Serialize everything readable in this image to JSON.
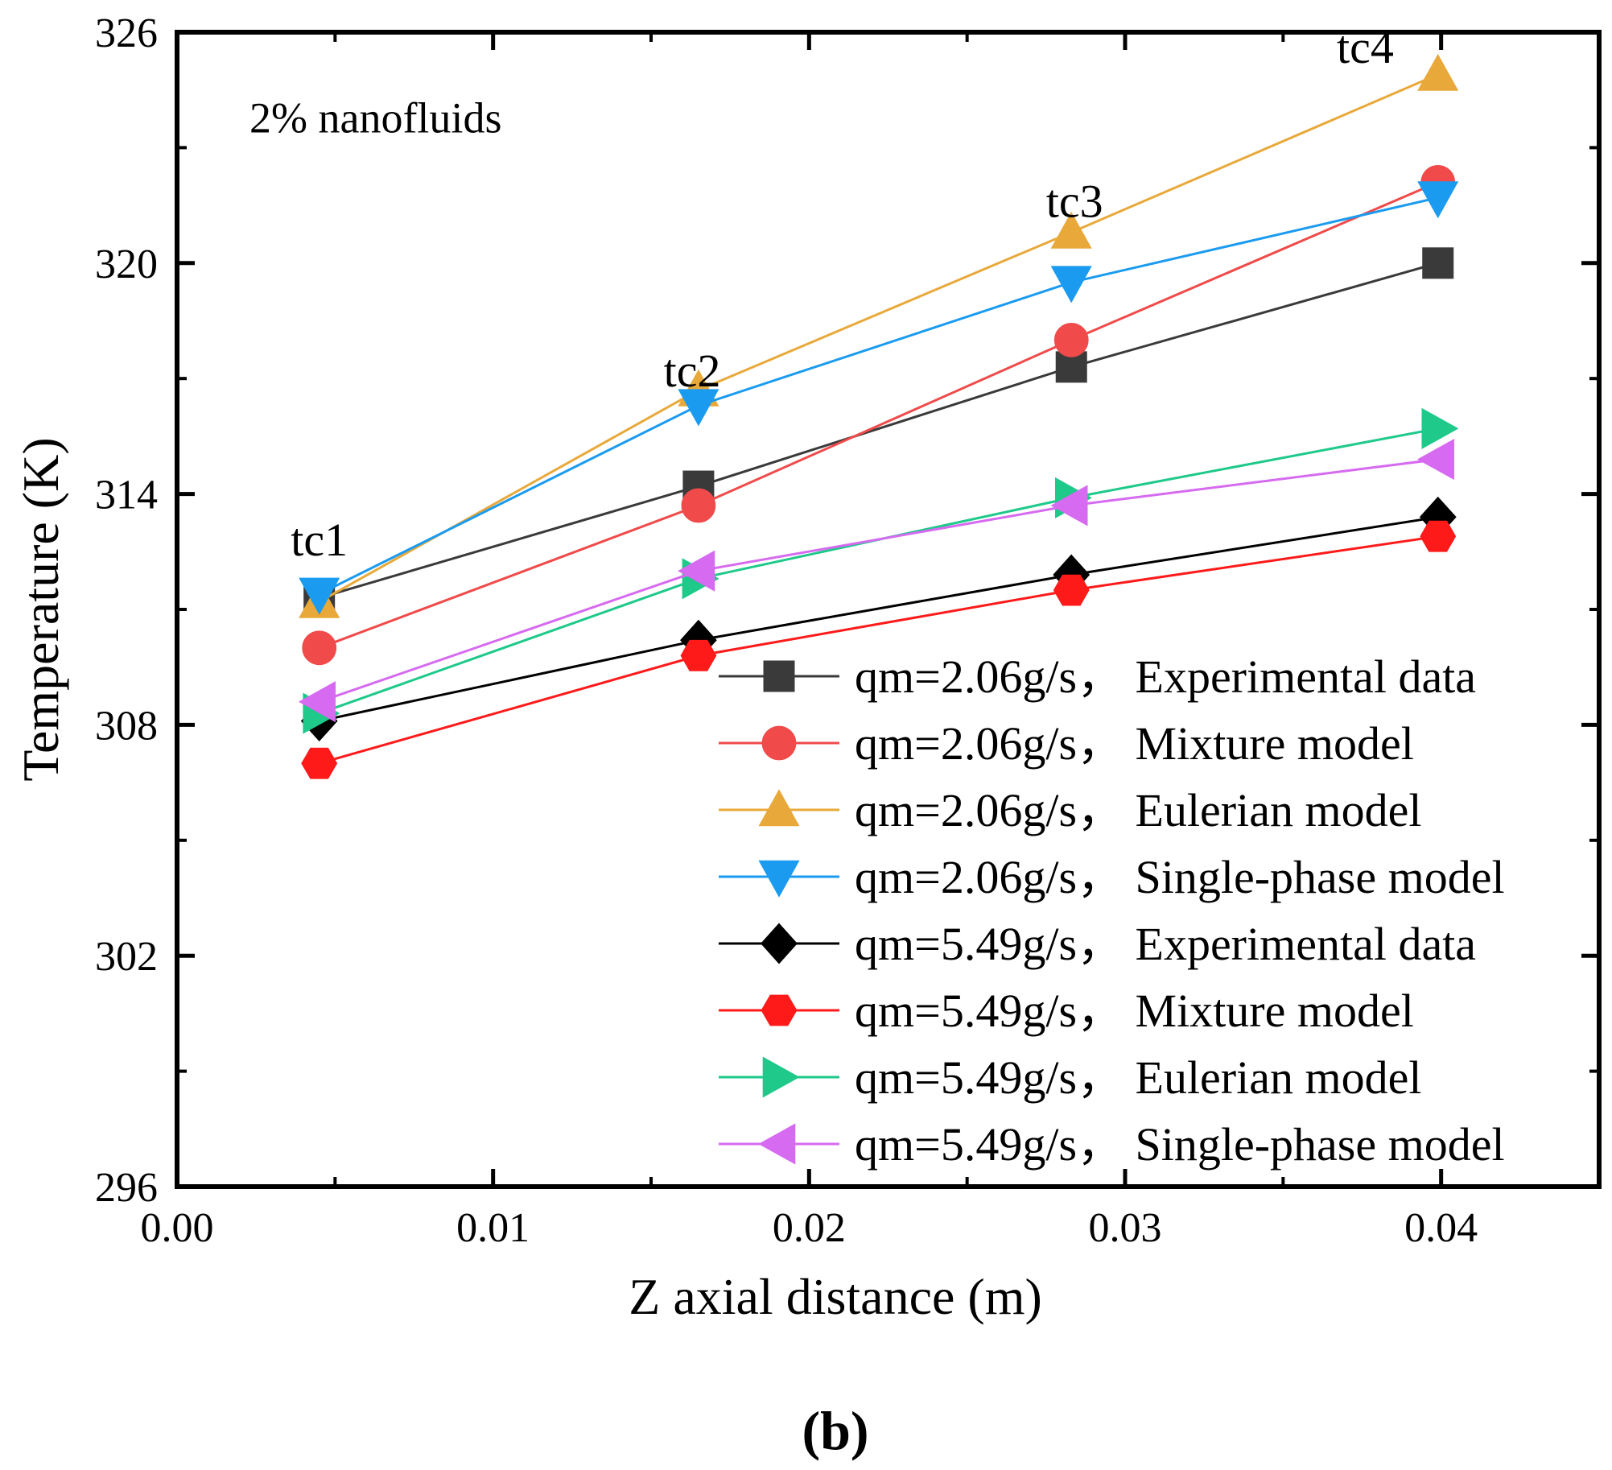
{
  "chart_data": {
    "type": "line",
    "title": "",
    "panel_label": "(b)",
    "xlabel": "Z axial distance (m)",
    "ylabel": "Temperature (K)",
    "xlim": [
      0.0,
      0.045
    ],
    "ylim": [
      296,
      326
    ],
    "x_ticks": [
      0.0,
      0.01,
      0.02,
      0.03,
      0.04
    ],
    "x_tick_labels": [
      "0.00",
      "0.01",
      "0.02",
      "0.03",
      "0.04"
    ],
    "y_ticks": [
      296,
      302,
      308,
      314,
      320,
      326
    ],
    "y_tick_labels": [
      "296",
      "302",
      "308",
      "314",
      "320",
      "326"
    ],
    "grid": false,
    "legend_position": "bottom-right",
    "annotations": [
      {
        "text": "2% nanofluids",
        "x": 0.0075,
        "y": 323.4
      },
      {
        "text": "tc1",
        "x": 0.0045,
        "y": 312.4
      },
      {
        "text": "tc2",
        "x": 0.0163,
        "y": 316.8
      },
      {
        "text": "tc3",
        "x": 0.0284,
        "y": 321.2
      },
      {
        "text": "tc4",
        "x": 0.0376,
        "y": 325.2
      }
    ],
    "x": [
      0.0045,
      0.0165,
      0.0283,
      0.0399
    ],
    "series": [
      {
        "name": "qm=2.06g/s， Experimental data",
        "color": "#3a3a3a",
        "marker": "square",
        "values": [
          311.3,
          314.2,
          317.3,
          320.0
        ]
      },
      {
        "name": "qm=2.06g/s， Mixture model",
        "color": "#f04a4a",
        "marker": "circle",
        "values": [
          310.0,
          313.7,
          318.0,
          322.1
        ]
      },
      {
        "name": "qm=2.06g/s， Eulerian model",
        "color": "#e8a93a",
        "marker": "triangle-up",
        "values": [
          311.2,
          316.7,
          320.8,
          324.9
        ]
      },
      {
        "name": "qm=2.06g/s， Single-phase model",
        "color": "#1a9bf0",
        "marker": "triangle-down",
        "values": [
          311.4,
          316.3,
          319.5,
          321.7
        ]
      },
      {
        "name": "qm=5.49g/s， Experimental data",
        "color": "#000000",
        "marker": "diamond",
        "values": [
          308.1,
          310.2,
          311.9,
          313.4
        ]
      },
      {
        "name": "qm=5.49g/s， Mixture model",
        "color": "#ff1a1a",
        "marker": "hexagon",
        "values": [
          307.0,
          309.8,
          311.5,
          312.9
        ]
      },
      {
        "name": "qm=5.49g/s， Eulerian model",
        "color": "#1ec98a",
        "marker": "triangle-right",
        "values": [
          308.3,
          311.8,
          313.9,
          315.7
        ]
      },
      {
        "name": "qm=5.49g/s， Single-phase model",
        "color": "#d66af0",
        "marker": "triangle-left",
        "values": [
          308.6,
          312.0,
          313.7,
          314.9
        ]
      }
    ]
  }
}
